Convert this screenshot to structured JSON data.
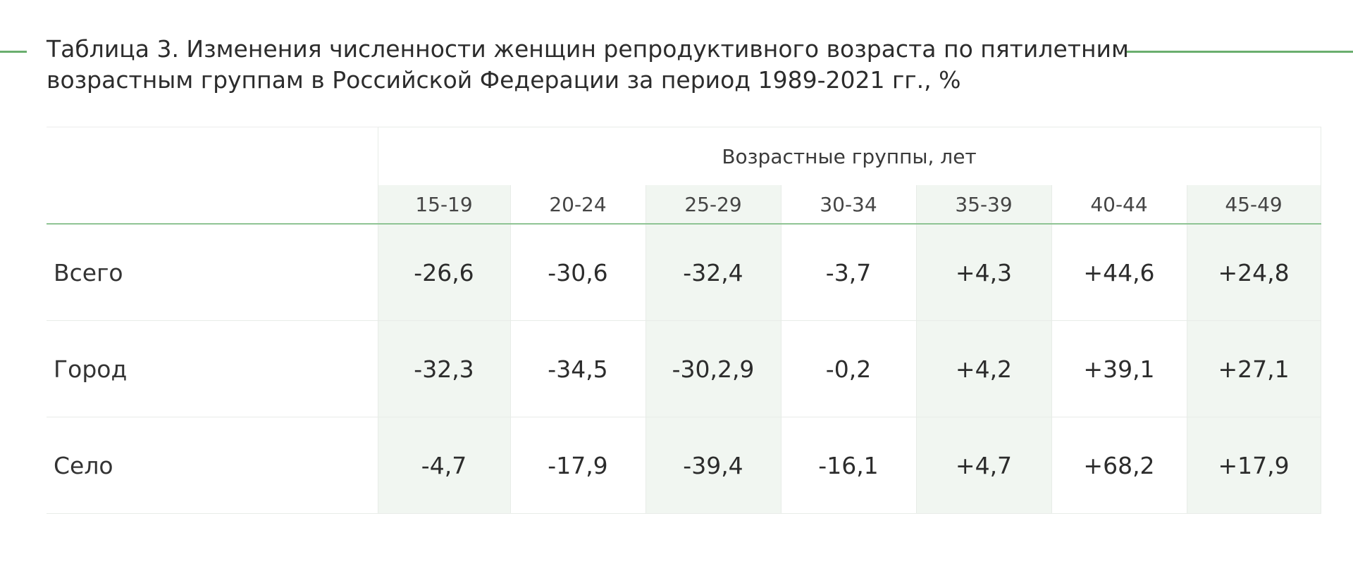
{
  "title": {
    "line1": "Таблица 3. Изменения численности женщин репродуктивного возраста по пятилетним",
    "line2": "возрастным группам в Российской Федерации за период 1989-2021 гг., %"
  },
  "colors": {
    "accent_green": "#6aae6e",
    "tinted_column": "#f1f6f1",
    "border": "#e8ece8"
  },
  "table": {
    "group_header": "Возрастные группы, лет",
    "age_groups": [
      "15-19",
      "20-24",
      "25-29",
      "30-34",
      "35-39",
      "40-44",
      "45-49"
    ],
    "rows": [
      {
        "label": "Всего",
        "values": [
          "-26,6",
          "-30,6",
          "-32,4",
          "-3,7",
          "+4,3",
          "+44,6",
          "+24,8"
        ]
      },
      {
        "label": "Город",
        "values": [
          "-32,3",
          "-34,5",
          "-30,2,9",
          "-0,2",
          "+4,2",
          "+39,1",
          "+27,1"
        ]
      },
      {
        "label": "Село",
        "values": [
          "-4,7",
          "-17,9",
          "-39,4",
          "-16,1",
          "+4,7",
          "+68,2",
          "+17,9"
        ]
      }
    ]
  }
}
